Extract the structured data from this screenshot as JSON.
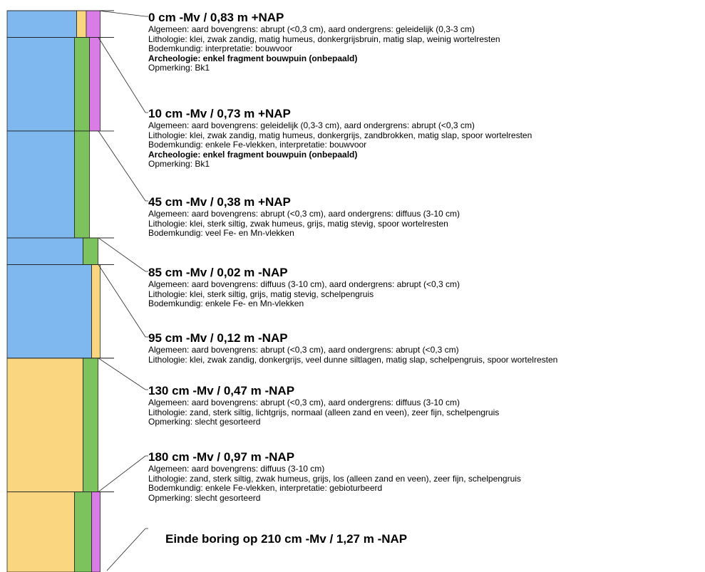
{
  "colors": {
    "blue": "#7fb8ef",
    "yellow": "#f9d67f",
    "green": "#7dc35d",
    "magenta": "#d97ce6",
    "outline": "#222222"
  },
  "column_segments": [
    {
      "from_cm": 0,
      "to_cm": 10,
      "bars": [
        "blue",
        "yellow",
        "magenta"
      ],
      "fractions": [
        0.65,
        0.09,
        0.13
      ]
    },
    {
      "from_cm": 10,
      "to_cm": 45,
      "bars": [
        "blue",
        "green",
        "magenta"
      ],
      "fractions": [
        0.63,
        0.14,
        0.1
      ]
    },
    {
      "from_cm": 45,
      "to_cm": 85,
      "bars": [
        "blue",
        "green"
      ],
      "fractions": [
        0.63,
        0.14
      ]
    },
    {
      "from_cm": 85,
      "to_cm": 95,
      "bars": [
        "blue",
        "green"
      ],
      "fractions": [
        0.71,
        0.14
      ]
    },
    {
      "from_cm": 95,
      "to_cm": 130,
      "bars": [
        "blue",
        "yellow"
      ],
      "fractions": [
        0.79,
        0.08
      ]
    },
    {
      "from_cm": 130,
      "to_cm": 180,
      "bars": [
        "yellow",
        "green"
      ],
      "fractions": [
        0.71,
        0.14
      ]
    },
    {
      "from_cm": 180,
      "to_cm": 210,
      "bars": [
        "yellow",
        "green",
        "magenta"
      ],
      "fractions": [
        0.63,
        0.16,
        0.08
      ]
    }
  ],
  "layers": [
    {
      "depth": "0 cm -Mv / 0,83 m +NAP",
      "lines": [
        {
          "text": "Algemeen: aard bovengrens: abrupt (<0,3 cm), aard ondergrens: geleidelijk (0,3-3 cm)",
          "bold": false
        },
        {
          "text": "Lithologie: klei, zwak zandig, matig humeus, donkergrijsbruin, matig slap, weinig wortelresten",
          "bold": false
        },
        {
          "text": "Bodemkundig: interpretatie: bouwvoor",
          "bold": false
        },
        {
          "text": "Archeologie: enkel fragment bouwpuin (onbepaald)",
          "bold": true
        },
        {
          "text": "Opmerking: Bk1",
          "bold": false
        }
      ]
    },
    {
      "depth": "10 cm -Mv / 0,73 m +NAP",
      "lines": [
        {
          "text": "Algemeen: aard bovengrens: geleidelijk (0,3-3 cm), aard ondergrens: abrupt (<0,3 cm)",
          "bold": false
        },
        {
          "text": "Lithologie: klei, zwak zandig, matig humeus, donkergrijs, zandbrokken, matig slap, spoor wortelresten",
          "bold": false
        },
        {
          "text": "Bodemkundig: enkele Fe-vlekken, interpretatie: bouwvoor",
          "bold": false
        },
        {
          "text": "Archeologie: enkel fragment bouwpuin (onbepaald)",
          "bold": true
        },
        {
          "text": "Opmerking: Bk1",
          "bold": false
        }
      ]
    },
    {
      "depth": "45 cm -Mv / 0,38 m +NAP",
      "lines": [
        {
          "text": "Algemeen: aard bovengrens: abrupt (<0,3 cm), aard ondergrens: diffuus (3-10 cm)",
          "bold": false
        },
        {
          "text": "Lithologie: klei, sterk siltig, zwak humeus, grijs, matig stevig, spoor wortelresten",
          "bold": false
        },
        {
          "text": "Bodemkundig: veel Fe- en Mn-vlekken",
          "bold": false
        }
      ]
    },
    {
      "depth": "85 cm -Mv / 0,02 m -NAP",
      "lines": [
        {
          "text": "Algemeen: aard bovengrens: diffuus (3-10 cm), aard ondergrens: abrupt (<0,3 cm)",
          "bold": false
        },
        {
          "text": "Lithologie: klei, sterk siltig, grijs, matig stevig, schelpengruis",
          "bold": false
        },
        {
          "text": "Bodemkundig: enkele Fe- en Mn-vlekken",
          "bold": false
        }
      ]
    },
    {
      "depth": "95 cm -Mv / 0,12 m -NAP",
      "lines": [
        {
          "text": "Algemeen: aard bovengrens: abrupt (<0,3 cm), aard ondergrens: abrupt (<0,3 cm)",
          "bold": false
        },
        {
          "text": "Lithologie: klei, zwak zandig, donkergrijs, veel dunne siltlagen, matig slap, schelpengruis, spoor wortelresten",
          "bold": false
        }
      ]
    },
    {
      "depth": "130 cm -Mv / 0,47 m -NAP",
      "lines": [
        {
          "text": "Algemeen: aard bovengrens: abrupt (<0,3 cm), aard ondergrens: diffuus (3-10 cm)",
          "bold": false
        },
        {
          "text": "Lithologie: zand, sterk siltig, lichtgrijs, normaal (alleen zand en veen), zeer fijn, schelpengruis",
          "bold": false
        },
        {
          "text": "Opmerking: slecht gesorteerd",
          "bold": false
        }
      ]
    },
    {
      "depth": "180 cm -Mv / 0,97 m -NAP",
      "lines": [
        {
          "text": "Algemeen: aard bovengrens: diffuus (3-10 cm)",
          "bold": false
        },
        {
          "text": "Lithologie: zand, sterk siltig, zwak humeus, grijs, los (alleen zand en veen), zeer fijn, schelpengruis",
          "bold": false
        },
        {
          "text": "Bodemkundig: enkele Fe-vlekken, interpretatie: gebioturbeerd",
          "bold": false
        },
        {
          "text": "Opmerking: slecht gesorteerd",
          "bold": false
        }
      ]
    }
  ],
  "end_label": "Einde boring op 210 cm -Mv / 1,27 m -NAP"
}
